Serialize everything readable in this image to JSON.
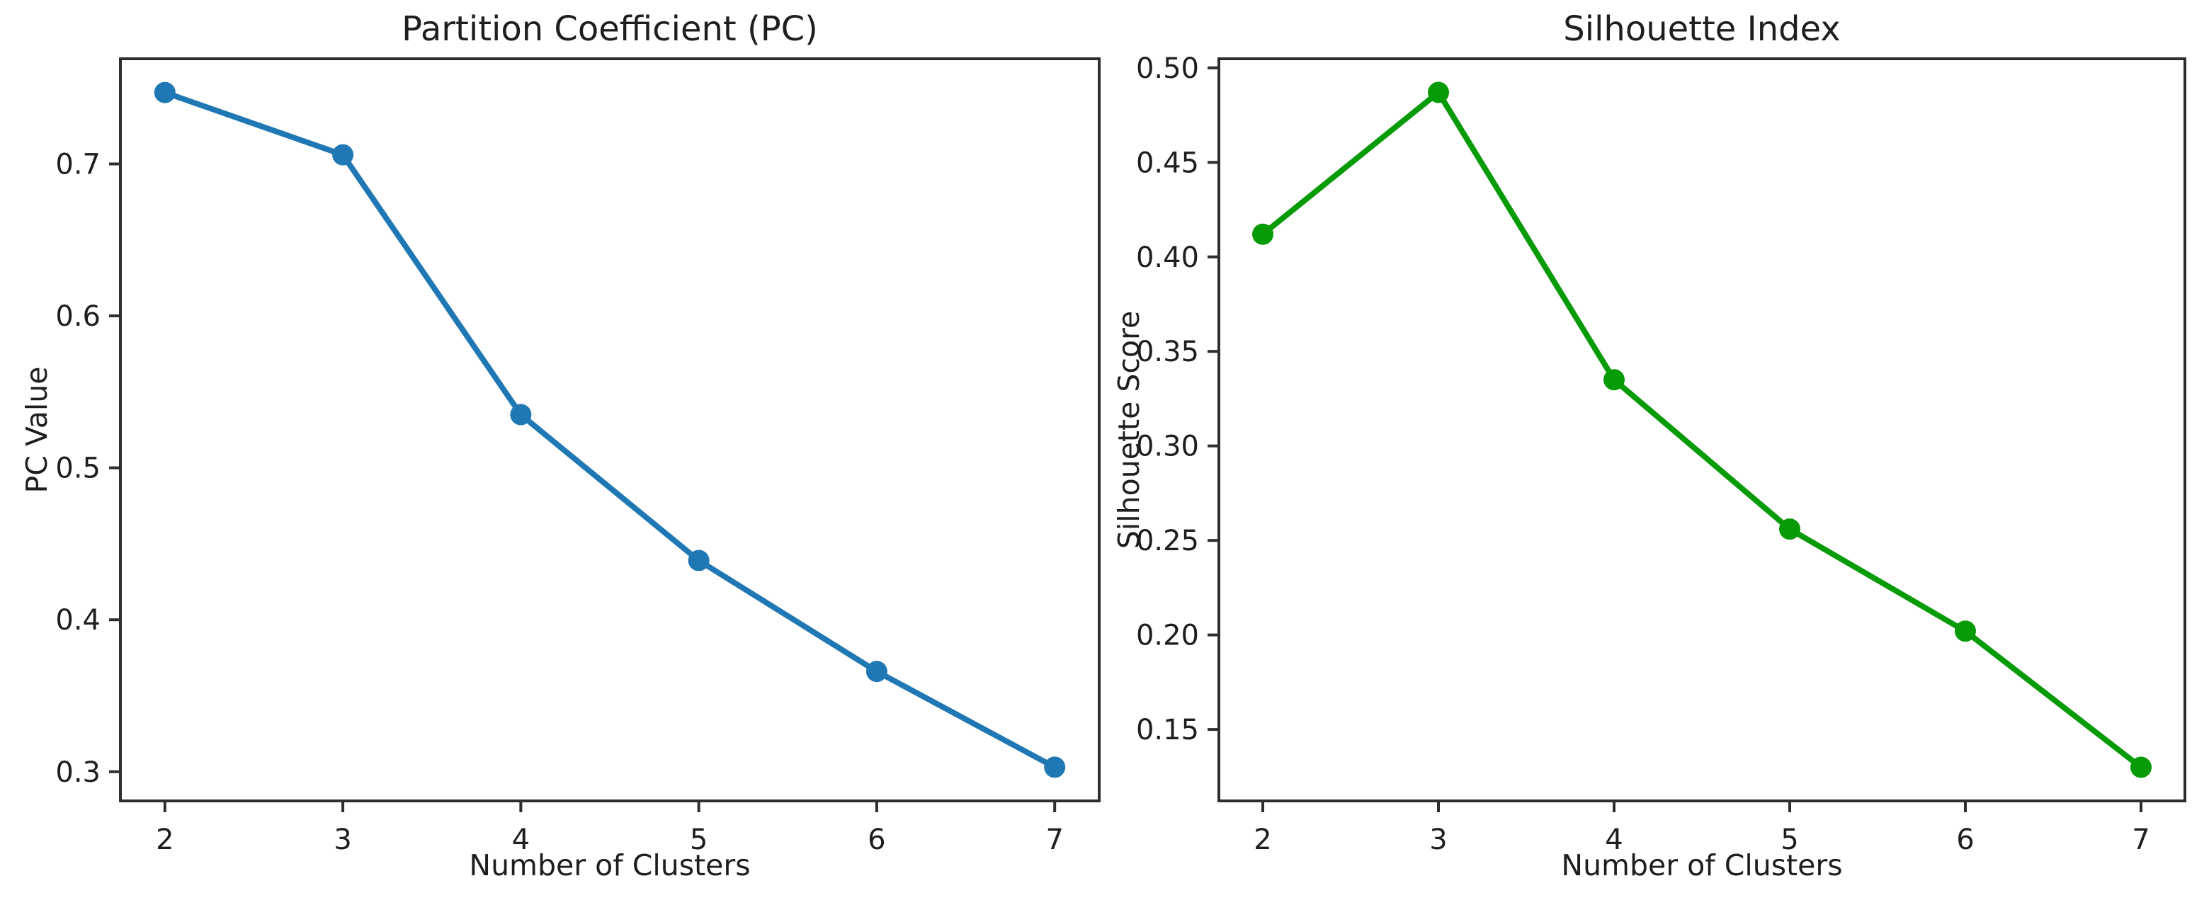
{
  "figure": {
    "background": "#ffffff",
    "text_color": "#1e1e1e",
    "spine_color": "#2e2e2e"
  },
  "chart_data": [
    {
      "id": "pc",
      "type": "line",
      "title": "Partition Coefficient (PC)",
      "xlabel": "Number of Clusters",
      "ylabel": "PC Value",
      "x": [
        2,
        3,
        4,
        5,
        6,
        7
      ],
      "y": [
        0.747,
        0.706,
        0.535,
        0.439,
        0.366,
        0.303
      ],
      "color": "#1f77b4",
      "marker": "circle",
      "line_style": "solid",
      "grid": false,
      "legend": null,
      "xlim": [
        1.75,
        7.25
      ],
      "ylim": [
        0.2808,
        0.7692
      ],
      "x_ticks": [
        2,
        3,
        4,
        5,
        6,
        7
      ],
      "x_tick_labels": [
        "2",
        "3",
        "4",
        "5",
        "6",
        "7"
      ],
      "y_ticks": [
        0.3,
        0.4,
        0.5,
        0.6,
        0.7
      ],
      "y_tick_labels": [
        "0.3",
        "0.4",
        "0.5",
        "0.6",
        "0.7"
      ]
    },
    {
      "id": "silhouette",
      "type": "line",
      "title": "Silhouette Index",
      "xlabel": "Number of Clusters",
      "ylabel": "Silhouette Score",
      "x": [
        2,
        3,
        4,
        5,
        6,
        7
      ],
      "y": [
        0.412,
        0.487,
        0.335,
        0.256,
        0.202,
        0.13
      ],
      "color": "#089b08",
      "marker": "circle",
      "line_style": "solid",
      "grid": false,
      "legend": null,
      "xlim": [
        1.75,
        7.25
      ],
      "ylim": [
        0.1122,
        0.5048
      ],
      "x_ticks": [
        2,
        3,
        4,
        5,
        6,
        7
      ],
      "x_tick_labels": [
        "2",
        "3",
        "4",
        "5",
        "6",
        "7"
      ],
      "y_ticks": [
        0.15,
        0.2,
        0.25,
        0.3,
        0.35,
        0.4,
        0.45,
        0.5
      ],
      "y_tick_labels": [
        "0.15",
        "0.20",
        "0.25",
        "0.30",
        "0.35",
        "0.40",
        "0.45",
        "0.50"
      ]
    }
  ]
}
